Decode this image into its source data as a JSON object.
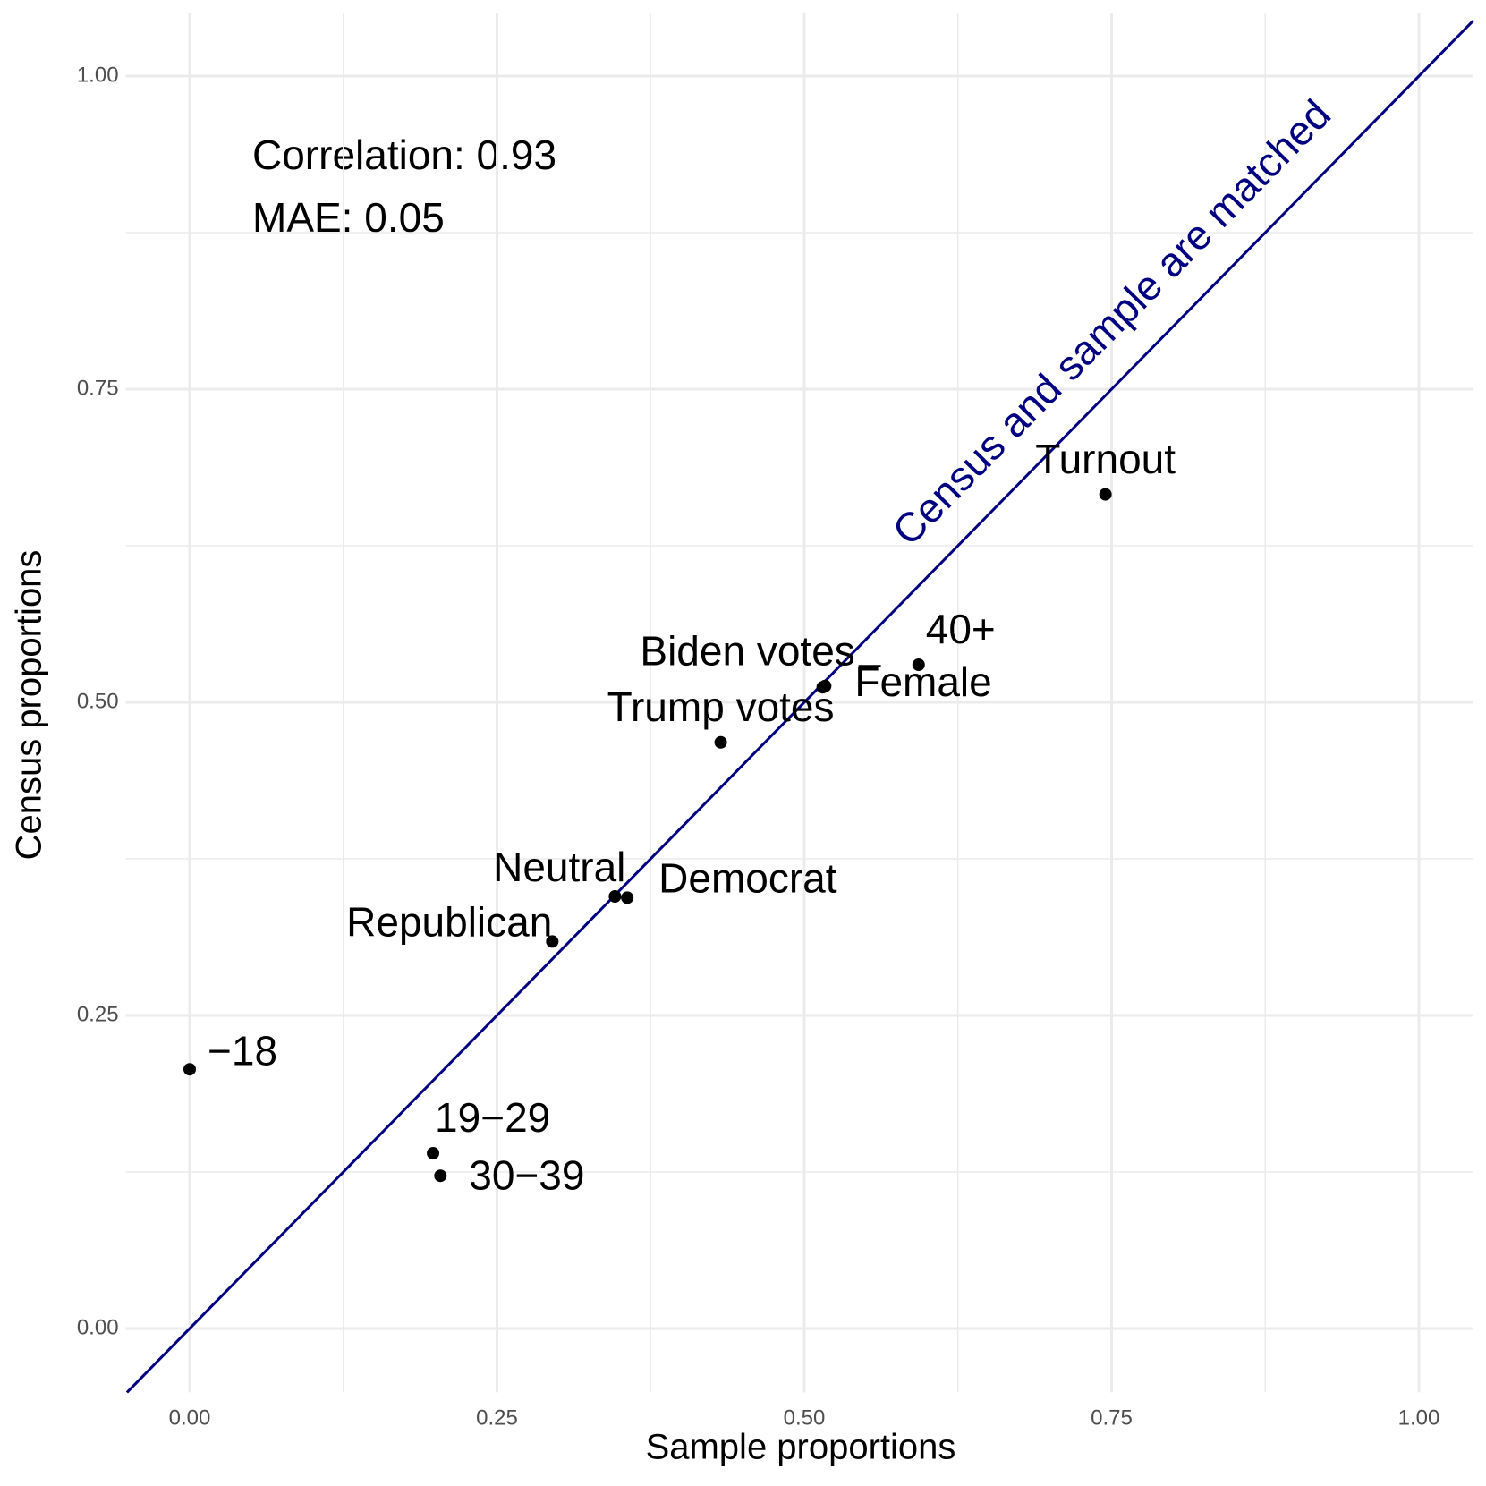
{
  "chart_data": {
    "type": "scatter",
    "x_label": "Sample proportions",
    "y_label": "Census proportions",
    "labels": [
      "−18",
      "19−29",
      "30−39",
      "Republican",
      "Neutral",
      "Democrat",
      "Trump votes",
      "Biden votes",
      "Female",
      "40+",
      "Turnout"
    ],
    "x": [
      0,
      0.198,
      0.204,
      0.295,
      0.346,
      0.356,
      0.432,
      0.515,
      0.517,
      0.593,
      0.745
    ],
    "values": [
      0.207,
      0.14,
      0.122,
      0.309,
      0.345,
      0.344,
      0.468,
      0.512,
      0.513,
      0.53,
      0.666
    ],
    "color": "#000000",
    "xlim": [
      -0.052,
      1.044
    ],
    "ylim": [
      -0.051,
      1.05
    ],
    "xticks": [
      {
        "value": 0,
        "label": "0.00"
      },
      {
        "value": 0.25,
        "label": "0.25"
      },
      {
        "value": 0.5,
        "label": "0.50"
      },
      {
        "value": 0.75,
        "label": "0.75"
      },
      {
        "value": 1,
        "label": "1.00"
      }
    ],
    "yticks": [
      {
        "value": 0,
        "label": "0.00"
      },
      {
        "value": 0.25,
        "label": "0.25"
      },
      {
        "value": 0.5,
        "label": "0.50"
      },
      {
        "value": 0.75,
        "label": "0.75"
      },
      {
        "value": 1,
        "label": "1.00"
      }
    ],
    "grid": true,
    "reference_line_label": "Census and sample are matched",
    "reference_line_color": "#000080",
    "annotations": [
      "Correlation: 0.93",
      "MAE: 0.05"
    ]
  }
}
